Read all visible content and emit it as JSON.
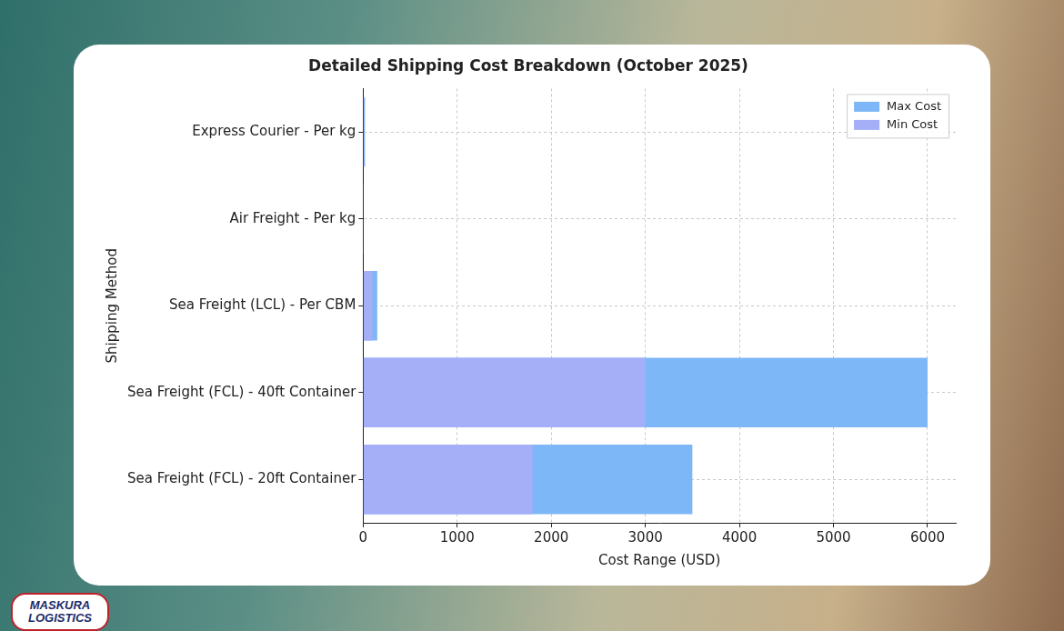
{
  "brand": "MASKURA LOGISTICS",
  "chart_data": {
    "type": "bar",
    "orientation": "horizontal",
    "title": "Detailed Shipping Cost Breakdown (October 2025)",
    "x_label": "Cost Range (USD)",
    "y_label": "Shipping Method",
    "categories": [
      "Express Courier - Per kg",
      "Air Freight - Per kg",
      "Sea Freight (LCL) - Per CBM",
      "Sea Freight (FCL) - 40ft Container",
      "Sea Freight (FCL) - 20ft Container"
    ],
    "series": [
      {
        "name": "Max Cost",
        "color": "#7db7f7",
        "values": [
          20,
          6,
          150,
          6000,
          3500
        ]
      },
      {
        "name": "Min Cost",
        "color": "#a4aff8",
        "values": [
          10,
          4,
          100,
          3000,
          1800
        ]
      }
    ],
    "xlim": [
      0,
      6300
    ],
    "xticks": [
      0,
      1000,
      2000,
      3000,
      4000,
      5000,
      6000
    ],
    "grid": true,
    "legend": "upper right",
    "stacked": false,
    "data_labels": false
  }
}
